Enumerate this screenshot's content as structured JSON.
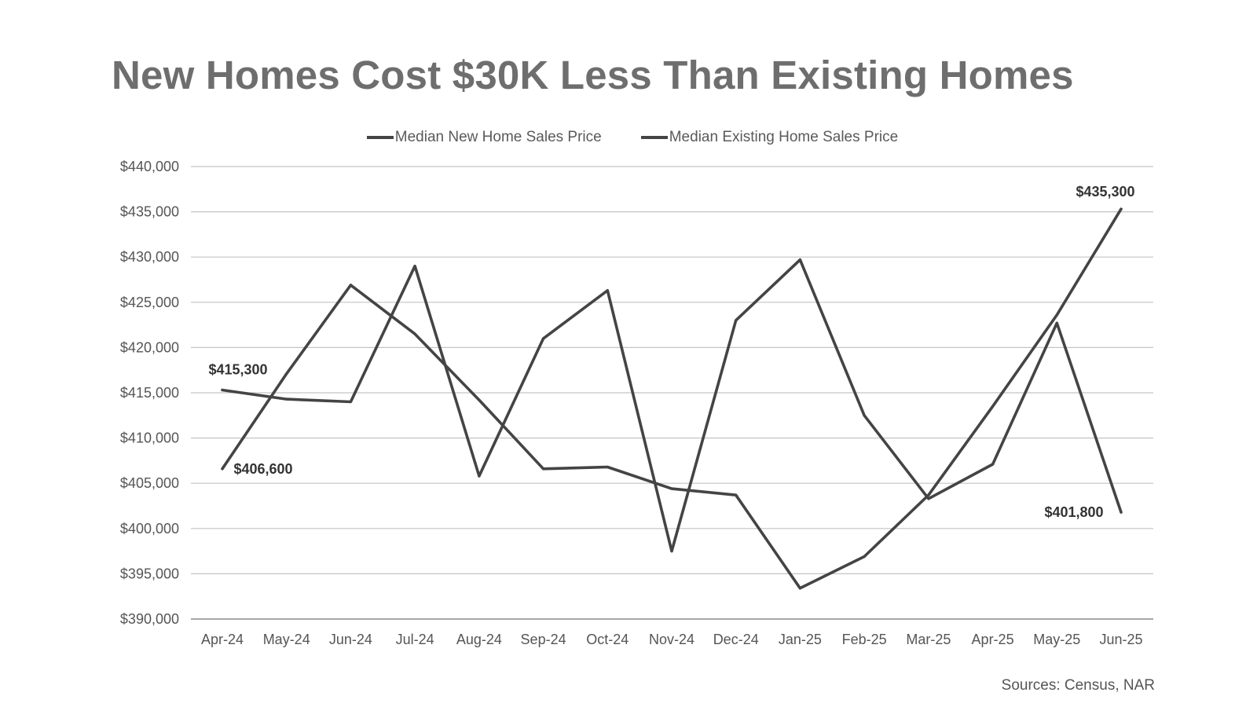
{
  "title": "New Homes Cost $30K Less Than Existing Homes",
  "source": "Sources: Census, NAR",
  "colors": {
    "line": "#444444",
    "grid": "#c4c4c4",
    "axis": "#8a8a8a",
    "title": "#6e6e6e",
    "tick_text": "#555555",
    "label_text": "#333333"
  },
  "chart_data": {
    "type": "line",
    "title": "New Homes Cost $30K Less Than Existing Homes",
    "xlabel": "",
    "ylabel": "",
    "ylim": [
      390000,
      440000
    ],
    "grid": true,
    "legend_position": "top-center",
    "categories": [
      "Apr-24",
      "May-24",
      "Jun-24",
      "Jul-24",
      "Aug-24",
      "Sep-24",
      "Oct-24",
      "Nov-24",
      "Dec-24",
      "Jan-25",
      "Feb-25",
      "Mar-25",
      "Apr-25",
      "May-25",
      "Jun-25"
    ],
    "y_ticks": [
      390000,
      395000,
      400000,
      405000,
      410000,
      415000,
      420000,
      425000,
      430000,
      435000,
      440000
    ],
    "y_tick_labels": [
      "$390,000",
      "$395,000",
      "$400,000",
      "$405,000",
      "$410,000",
      "$415,000",
      "$420,000",
      "$425,000",
      "$430,000",
      "$435,000",
      "$440,000"
    ],
    "series": [
      {
        "name": "Median New Home Sales Price",
        "values": [
          415300,
          414300,
          414000,
          429000,
          405800,
          421000,
          426300,
          397500,
          423000,
          429700,
          412500,
          403300,
          407100,
          422700,
          401800
        ]
      },
      {
        "name": "Median Existing Home Sales Price",
        "values": [
          406600,
          417100,
          426900,
          421500,
          414200,
          406600,
          406800,
          404400,
          403700,
          393400,
          396900,
          403700,
          413500,
          423600,
          435300
        ]
      }
    ],
    "annotations": [
      {
        "series": 0,
        "index": 0,
        "text": "$415,300"
      },
      {
        "series": 1,
        "index": 0,
        "text": "$406,600"
      },
      {
        "series": 0,
        "index": 14,
        "text": "$401,800"
      },
      {
        "series": 1,
        "index": 14,
        "text": "$435,300"
      }
    ]
  }
}
